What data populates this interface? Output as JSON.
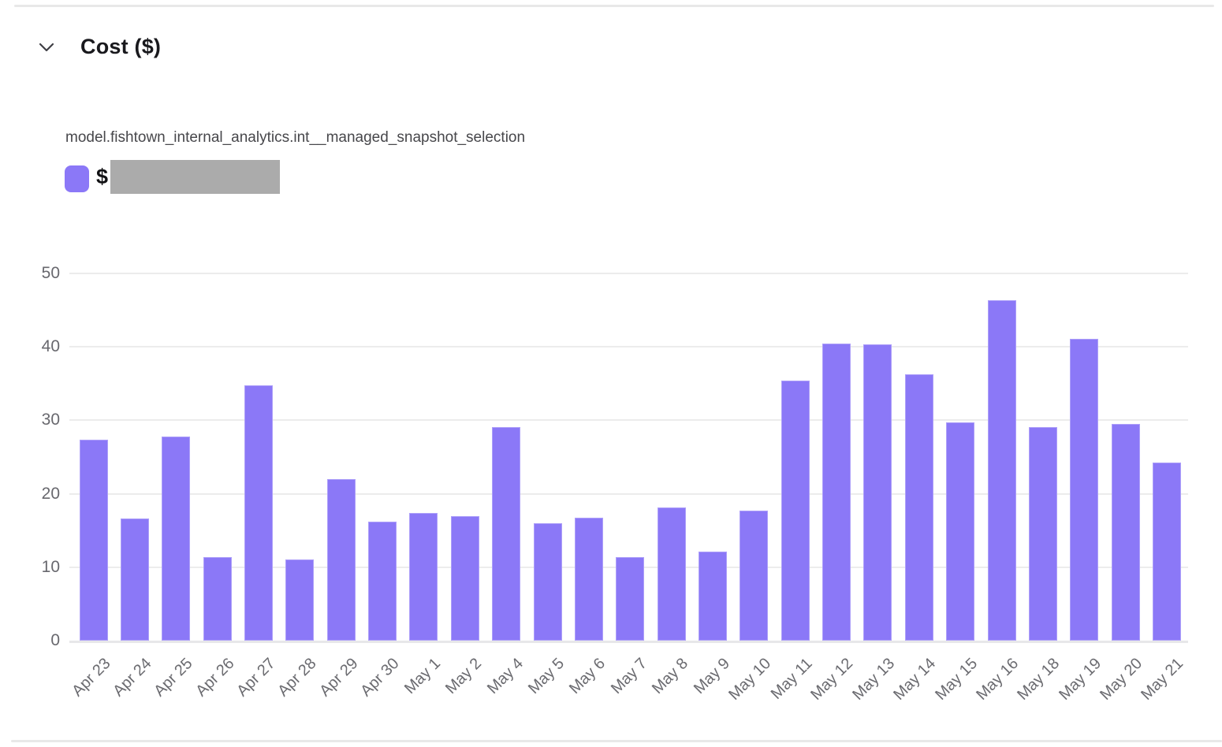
{
  "section": {
    "title": "Cost ($)"
  },
  "series_title": "model.fishtown_internal_analytics.int__managed_snapshot_selection",
  "legend": {
    "prefix": "$",
    "value_redacted": true,
    "swatch_color": "#8b78f7",
    "redaction_color": "#ababab"
  },
  "chart_data": {
    "type": "bar",
    "title": "Cost ($)",
    "series_name": "model.fishtown_internal_analytics.int__managed_snapshot_selection",
    "categories": [
      "Apr 23",
      "Apr 24",
      "Apr 25",
      "Apr 26",
      "Apr 27",
      "Apr 28",
      "Apr 29",
      "Apr 30",
      "May 1",
      "May 2",
      "May 4",
      "May 5",
      "May 6",
      "May 7",
      "May 8",
      "May 9",
      "May 10",
      "May 11",
      "May 12",
      "May 13",
      "May 14",
      "May 15",
      "May 16",
      "May 18",
      "May 19",
      "May 20",
      "May 21"
    ],
    "values": [
      27.4,
      16.6,
      27.8,
      11.4,
      34.8,
      11.0,
      22.0,
      16.2,
      17.4,
      16.9,
      29.1,
      16.0,
      16.7,
      11.4,
      18.1,
      12.1,
      17.7,
      35.4,
      40.5,
      40.3,
      36.3,
      29.7,
      46.4,
      29.1,
      41.1,
      29.5,
      24.3
    ],
    "bar_color": "#8b78f7",
    "ylim": [
      0,
      50
    ],
    "yticks": [
      0,
      10,
      20,
      30,
      40,
      50
    ],
    "grid": true,
    "legend_position": "top-left",
    "x_label_rotation": -45
  }
}
